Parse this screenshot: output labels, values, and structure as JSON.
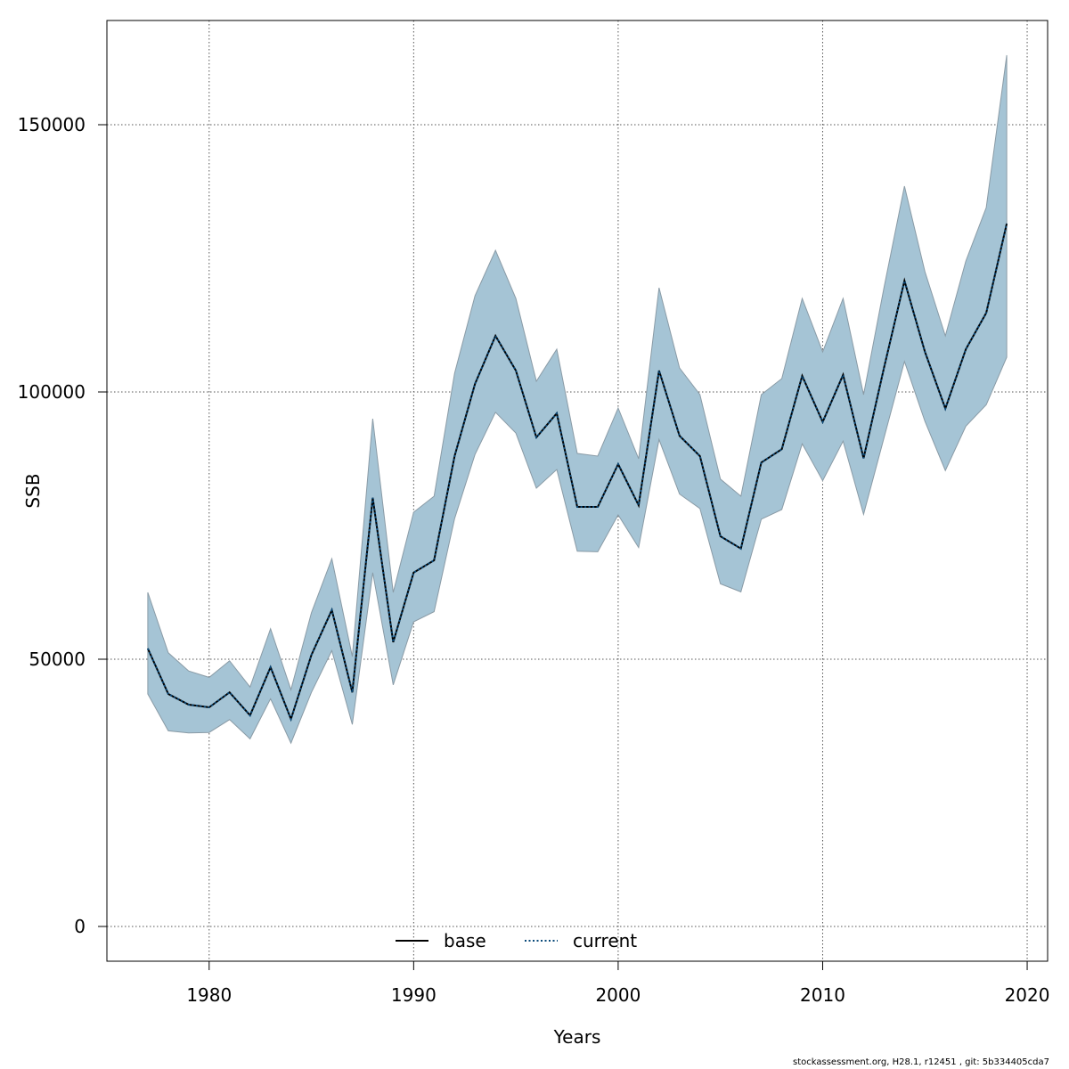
{
  "chart_data": {
    "type": "line",
    "title": "",
    "xlabel": "Years",
    "ylabel": "SSB",
    "xlim": [
      1975,
      2021
    ],
    "ylim": [
      -6500,
      169500
    ],
    "x_ticks": [
      1980,
      1990,
      2000,
      2010,
      2020
    ],
    "x_tick_labels": [
      "1980",
      "1990",
      "2000",
      "2010",
      "2020"
    ],
    "y_ticks": [
      0,
      50000,
      100000,
      150000
    ],
    "y_tick_labels": [
      "0",
      "50000",
      "100000",
      "150000"
    ],
    "grid": true,
    "legend_position": "bottom",
    "x": [
      1977,
      1978,
      1979,
      1980,
      1981,
      1982,
      1983,
      1984,
      1985,
      1986,
      1987,
      1988,
      1989,
      1990,
      1991,
      1992,
      1993,
      1994,
      1995,
      1996,
      1997,
      1998,
      1999,
      2000,
      2001,
      2002,
      2003,
      2004,
      2005,
      2006,
      2007,
      2008,
      2009,
      2010,
      2011,
      2012,
      2013,
      2014,
      2015,
      2016,
      2017,
      2018,
      2019
    ],
    "band": {
      "name": "confidence band",
      "color": "#a5c4d5",
      "edge_color": "#8a9ba6",
      "upper": [
        62500,
        51200,
        47800,
        46600,
        49700,
        44800,
        55700,
        44300,
        58700,
        68800,
        50500,
        95000,
        62500,
        77500,
        80500,
        103500,
        118000,
        126500,
        117500,
        102000,
        108000,
        88500,
        88000,
        97000,
        87500,
        119500,
        104500,
        99500,
        83700,
        80500,
        99500,
        102500,
        117500,
        107500,
        117500,
        99500,
        119500,
        138500,
        122500,
        110500,
        124500,
        134500,
        163000
      ],
      "lower": [
        43500,
        36600,
        36200,
        36300,
        38700,
        35100,
        42600,
        34300,
        43800,
        51600,
        37800,
        66200,
        45200,
        57000,
        58900,
        76300,
        88300,
        96200,
        92300,
        82000,
        85500,
        70200,
        70100,
        77000,
        70900,
        91100,
        80900,
        78200,
        64100,
        62600,
        76200,
        78000,
        90300,
        83400,
        90800,
        77100,
        91400,
        105700,
        94500,
        85300,
        93600,
        97600,
        106500
      ]
    },
    "series": [
      {
        "name": "base",
        "color": "#000000",
        "dash": "solid",
        "values": [
          52000,
          43500,
          41500,
          41000,
          43800,
          39500,
          48500,
          38800,
          50800,
          59200,
          43800,
          80200,
          53200,
          66200,
          68500,
          88000,
          101500,
          110500,
          104000,
          91500,
          96000,
          78500,
          78500,
          86500,
          78800,
          104000,
          91800,
          88000,
          73000,
          70700,
          86800,
          89300,
          103000,
          94400,
          103200,
          87600,
          104500,
          120800,
          107500,
          96900,
          108000,
          114800,
          131500
        ]
      },
      {
        "name": "current",
        "color": "#0a4a7a",
        "dash": "dotted",
        "values": [
          52000,
          43500,
          41500,
          41000,
          43800,
          39500,
          48500,
          38800,
          50800,
          59200,
          43800,
          80200,
          53200,
          66200,
          68500,
          88000,
          101500,
          110500,
          104000,
          91500,
          96000,
          78500,
          78500,
          86500,
          78800,
          104000,
          91800,
          88000,
          73000,
          70700,
          86800,
          89300,
          103000,
          94400,
          103200,
          87600,
          104500,
          120800,
          107500,
          96900,
          108000,
          114800,
          131500
        ]
      }
    ]
  },
  "footer_text": "stockassessment.org, H28.1, r12451 , git: 5b334405cda7"
}
